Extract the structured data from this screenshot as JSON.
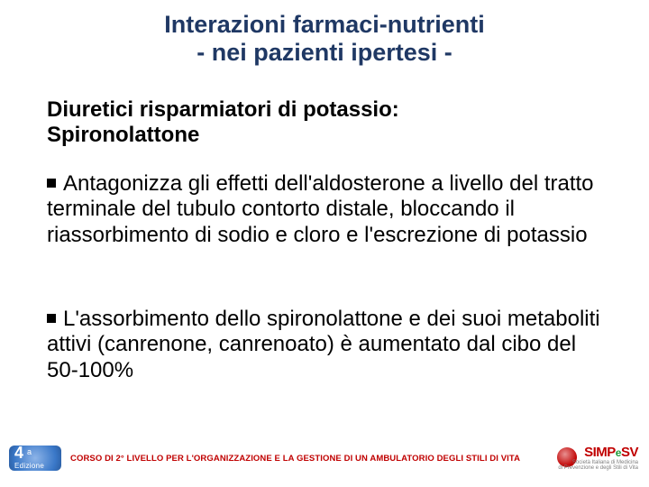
{
  "colors": {
    "title": "#1f3864",
    "text": "#000000",
    "accent_red": "#c00000",
    "accent_green": "#1f9b3a",
    "background": "#ffffff"
  },
  "typography": {
    "title_fontsize": 27,
    "body_fontsize": 24,
    "footer_fontsize": 9.5,
    "font_family": "Comic Sans MS"
  },
  "title": {
    "line1": "Interazioni farmaci-nutrienti",
    "line2": "- nei pazienti ipertesi -"
  },
  "subtitle": {
    "line1": "Diuretici risparmiatori di potassio:",
    "line2": "Spironolattone"
  },
  "bullets": [
    "Antagonizza gli effetti dell'aldosterone a livello del tratto terminale del tubulo contorto distale, bloccando il riassorbimento di sodio e cloro e l'escrezione di potassio",
    "L'assorbimento dello spironolattone e dei suoi metaboliti attivi (canrenone, canrenoato) è aumentato dal cibo del 50-100%"
  ],
  "footer": {
    "badge_number": "4",
    "badge_sup": "a",
    "badge_edition": "Edizione",
    "course_text": "CORSO DI 2° LIVELLO PER L'ORGANIZZAZIONE E LA GESTIONE DI UN AMBULATORIO DEGLI STILI DI VITA",
    "logo_main_1": "SIMP",
    "logo_main_e": "e",
    "logo_main_2": "SV",
    "logo_sub1": "Società Italiana di Medicina",
    "logo_sub2": "di Prevenzione e degli Stili di Vita"
  }
}
